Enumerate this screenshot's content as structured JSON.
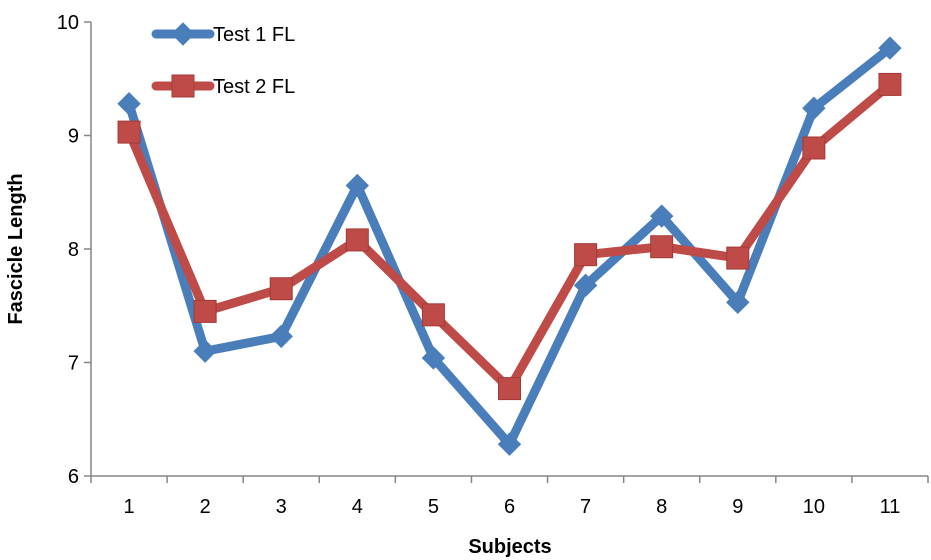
{
  "chart_data": {
    "type": "line",
    "x": [
      1,
      2,
      3,
      4,
      5,
      6,
      7,
      8,
      9,
      10,
      11
    ],
    "xlabel": "Subjects",
    "ylabel": "Fascicle Length",
    "ylim": [
      6,
      10
    ],
    "yticks": [
      6,
      7,
      8,
      9,
      10
    ],
    "grid": false,
    "legend_position": "top-left",
    "series": [
      {
        "name": "Test 1 FL",
        "color": "#4a7ebb",
        "marker": "diamond",
        "values": [
          9.28,
          7.1,
          7.23,
          8.56,
          7.04,
          6.28,
          7.68,
          8.29,
          7.53,
          9.24,
          9.77
        ]
      },
      {
        "name": "Test 2 FL",
        "color": "#be4b48",
        "marker": "square",
        "values": [
          9.03,
          7.45,
          7.65,
          8.08,
          7.42,
          6.77,
          7.95,
          8.02,
          7.92,
          8.89,
          9.45
        ]
      }
    ]
  }
}
